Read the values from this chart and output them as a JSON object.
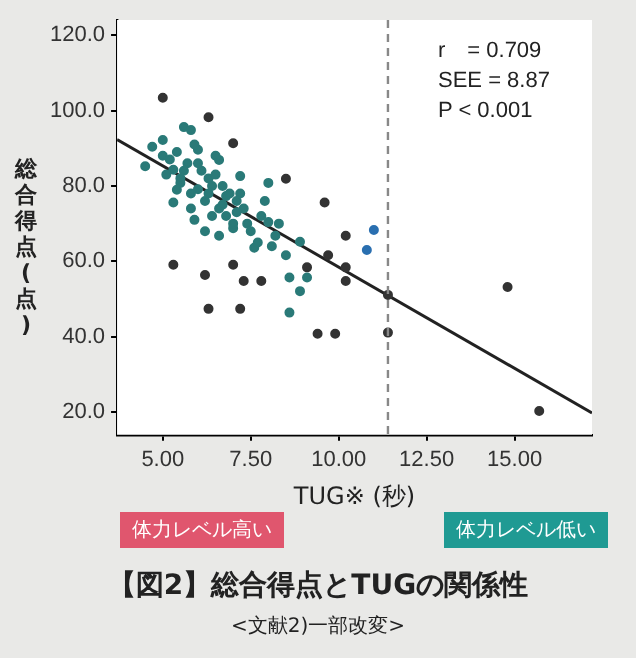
{
  "chart_data": {
    "type": "scatter",
    "title": "【図2】総合得点とTUGの関係性",
    "subtitle": "<文献2)一部改変>",
    "xlabel": "TUG※ (秒)",
    "ylabel": "総合得点(点)",
    "annotations": [
      "r　= 0.709",
      "SEE = 8.87",
      "P < 0.001",
      "体力レベル高い",
      "体力レベル低い"
    ],
    "xlim": [
      3.7,
      17.2
    ],
    "ylim": [
      14,
      124
    ],
    "xticks": [
      {
        "value": 5,
        "label": "5.00"
      },
      {
        "value": 7.5,
        "label": "7.50"
      },
      {
        "value": 10,
        "label": "10.00"
      },
      {
        "value": 12.5,
        "label": "12.50"
      },
      {
        "value": 15,
        "label": "15.00"
      }
    ],
    "yticks": [
      {
        "value": 20,
        "label": "20.0"
      },
      {
        "value": 40,
        "label": "40.0"
      },
      {
        "value": 60,
        "label": "60.0"
      },
      {
        "value": 80,
        "label": "80.0"
      },
      {
        "value": 100,
        "label": "100.0"
      },
      {
        "value": 120,
        "label": "120.0"
      }
    ],
    "legend": false,
    "marker": "circle",
    "ref_lines": [
      {
        "axis": "x",
        "value": 11.4,
        "color": "#888888",
        "line_style": "dashed"
      }
    ],
    "series": [
      {
        "color": "#2a7a78",
        "x": [
          5.0,
          5.6,
          5.8,
          4.7,
          5.0,
          6.0,
          4.5,
          5.3,
          6.6,
          7.2,
          8.0,
          5.5,
          6.0,
          6.8,
          5.3,
          5.8,
          6.4,
          7.3,
          8.0,
          7.0,
          6.6,
          8.2,
          8.9,
          7.6,
          8.5,
          5.2,
          5.4,
          5.7,
          5.9,
          6.1,
          6.3,
          6.5,
          6.7,
          6.9,
          7.1,
          5.5,
          5.8,
          6.2,
          6.4,
          6.8,
          7.4,
          7.8,
          5.6,
          6.0,
          6.3,
          6.6,
          7.0,
          7.5,
          7.9,
          8.3,
          5.1,
          5.4,
          5.9,
          6.2,
          6.7,
          7.2,
          7.7,
          8.1,
          6.5,
          7.1,
          8.6,
          8.9,
          8.6,
          9.1
        ],
        "values": [
          92.2,
          95.6,
          94.8,
          90.4,
          88.0,
          89.6,
          85.2,
          84.3,
          86.9,
          82.6,
          80.8,
          80.8,
          79.1,
          77.3,
          75.6,
          74.0,
          72.0,
          74.0,
          70.4,
          68.8,
          66.8,
          66.8,
          65.2,
          63.6,
          61.6,
          87.0,
          89.0,
          86.0,
          91.0,
          84.0,
          82.0,
          88.0,
          80.0,
          78.0,
          76.0,
          82.0,
          78.0,
          76.0,
          80.0,
          72.0,
          70.0,
          72.0,
          84.0,
          86.0,
          78.0,
          74.0,
          70.0,
          68.0,
          76.0,
          70.0,
          83.0,
          79.0,
          71.0,
          68.0,
          75.0,
          78.0,
          65.0,
          64.0,
          83.0,
          73.0,
          55.7,
          52.1,
          46.4,
          55.7
        ]
      },
      {
        "color": "#333333",
        "x": [
          5.0,
          6.3,
          7.0,
          8.5,
          9.6,
          9.7,
          10.2,
          5.3,
          7.0,
          6.2,
          9.1,
          10.2,
          7.3,
          7.8,
          14.8,
          6.3,
          7.2,
          9.4,
          9.9,
          10.2,
          11.4,
          11.4,
          15.7
        ],
        "values": [
          103.4,
          98.2,
          91.3,
          81.9,
          75.6,
          61.6,
          66.8,
          59.1,
          59.1,
          56.4,
          58.4,
          58.4,
          54.8,
          54.8,
          53.2,
          47.4,
          47.4,
          40.8,
          40.8,
          54.8,
          51.1,
          41.1,
          20.3
        ]
      },
      {
        "color": "#2a6fb0",
        "x": [
          11.0,
          10.8
        ],
        "values": [
          68.3,
          63.0
        ]
      },
      {
        "type": "line",
        "color": "#222222",
        "marker": "none",
        "x": [
          3.7,
          17.2
        ],
        "values": [
          92.3,
          19.8
        ]
      }
    ]
  }
}
